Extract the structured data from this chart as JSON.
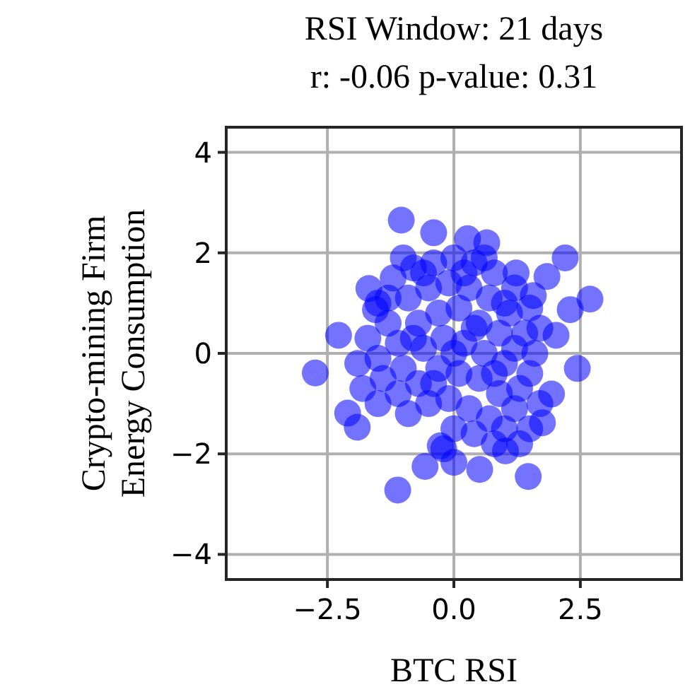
{
  "chart_data": {
    "type": "scatter",
    "title": "RSI Window: 21 days",
    "subtitle": "r: -0.06  p-value: 0.31",
    "xlabel": "BTC RSI",
    "ylabel": "Crypto-mining Firm\nEnergy Consumption",
    "xlim": [
      -4.5,
      4.5
    ],
    "ylim": [
      -4.5,
      4.5
    ],
    "xticks": [
      {
        "value": -2.5,
        "label": "−2.5"
      },
      {
        "value": 0,
        "label": "0.0"
      },
      {
        "value": 2.5,
        "label": "2.5"
      }
    ],
    "yticks": [
      {
        "value": -4,
        "label": "−4"
      },
      {
        "value": -2,
        "label": "−2"
      },
      0,
      2,
      4
    ],
    "grid": true,
    "marker": "circle",
    "series": [
      {
        "color": "#0000ff",
        "x": [
          -1.04,
          -0.4,
          0.27,
          0.65,
          2.2,
          1.23,
          1.84,
          2.69,
          2.3,
          2.02,
          2.44,
          -2.74,
          -2.28,
          -2.1,
          -1.91,
          -1.11,
          -0.57,
          0,
          0.51,
          1.47,
          -1.68,
          -1.55,
          -1.0,
          1.57,
          1.93,
          1.75,
          1.02,
          -0.27,
          -1.5,
          -1.2,
          -0.8,
          -0.4,
          0,
          0.4,
          0.8,
          1.2,
          1.5,
          1.7,
          -1.7,
          -1.3,
          -0.9,
          -0.5,
          -0.1,
          0.3,
          0.7,
          1.1,
          1.4,
          1.6,
          -1.9,
          -1.5,
          -1.1,
          -0.7,
          -0.3,
          0.1,
          0.5,
          0.9,
          1.2,
          1.5,
          -1.8,
          -1.4,
          -1.0,
          -0.6,
          -0.2,
          0.2,
          0.6,
          1.0,
          1.3,
          1.7,
          -1.5,
          -1.1,
          -0.7,
          -0.3,
          0.1,
          0.5,
          0.9,
          1.2,
          1.5,
          1.0,
          -0.9,
          -0.5,
          -0.1,
          0.3,
          0.7,
          0.4,
          0.0,
          0.8,
          -0.2,
          1.3,
          -0.4,
          0.0,
          0.4,
          -0.8,
          0.8,
          -1.3,
          0.2,
          1.0,
          -0.6,
          0.6
        ],
        "values": [
          2.65,
          2.4,
          2.28,
          2.2,
          1.9,
          1.6,
          1.53,
          1.08,
          0.87,
          0.36,
          -0.3,
          -0.39,
          0.36,
          -1.19,
          -1.47,
          -2.72,
          -2.25,
          -2.17,
          -2.31,
          -2.45,
          1.29,
          0.87,
          1.9,
          1.15,
          -0.81,
          -1.38,
          -1.94,
          -1.84,
          1.0,
          1.5,
          1.7,
          1.8,
          1.9,
          1.8,
          1.6,
          1.3,
          0.9,
          0.5,
          0.3,
          0.6,
          1.1,
          1.3,
          1.4,
          1.3,
          1.1,
          0.8,
          0.4,
          0.0,
          -0.2,
          -0.1,
          0.2,
          0.6,
          0.8,
          0.9,
          0.6,
          0.4,
          0.1,
          -0.4,
          -0.7,
          -0.5,
          -0.3,
          0.1,
          0.3,
          0.2,
          0.0,
          -0.2,
          -0.7,
          -1.0,
          -1.0,
          -0.8,
          -0.6,
          -0.3,
          -0.4,
          -0.5,
          -0.8,
          -1.1,
          -1.5,
          -1.5,
          -1.2,
          -1.0,
          -0.9,
          -1.1,
          -1.3,
          -1.6,
          -1.5,
          -1.8,
          -1.9,
          -1.8,
          -0.6,
          0.0,
          0.5,
          0.3,
          -0.4,
          1.1,
          1.6,
          1.0,
          1.6,
          1.9
        ]
      }
    ]
  }
}
